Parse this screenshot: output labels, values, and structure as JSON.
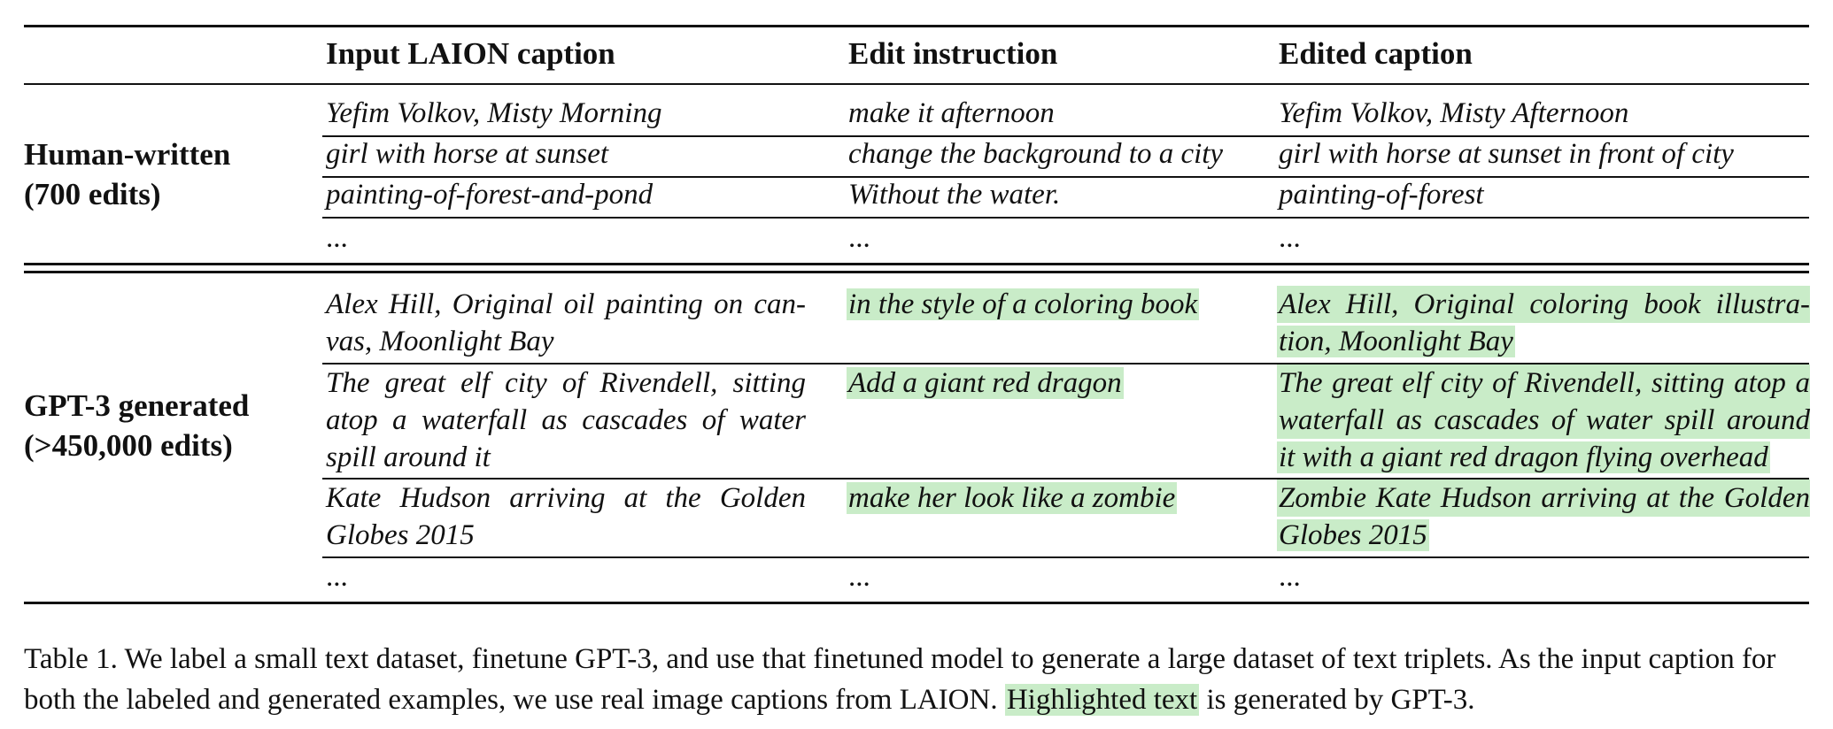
{
  "table": {
    "headers": [
      "Input LAION caption",
      "Edit instruction",
      "Edited caption"
    ],
    "groups": [
      {
        "label_line1": "Human-written",
        "label_line2": "(700 edits)",
        "rows": [
          {
            "input": "Yefim Volkov, Misty Morning",
            "instruction": "make it afternoon",
            "edited": "Yefim Volkov, Misty Afternoon"
          },
          {
            "input": "girl with horse at sunset",
            "instruction": "change the background to a city",
            "edited": "girl with horse at sunset in front of city"
          },
          {
            "input": "painting-of-forest-and-pond",
            "instruction": "Without the water.",
            "edited": "painting-of-forest"
          },
          {
            "input": "...",
            "instruction": "...",
            "edited": "..."
          }
        ]
      },
      {
        "label_line1": "GPT-3 generated",
        "label_line2": "(>450,000 edits)",
        "rows": [
          {
            "input_lines": [
              "Alex Hill, Original oil painting on can-",
              "vas, Moonlight Bay"
            ],
            "instruction": "in the style of a coloring book",
            "edited_lines": [
              "Alex Hill, Original coloring book illustra-",
              "tion, Moonlight Bay"
            ]
          },
          {
            "input_lines": [
              "The great elf city of Rivendell, sitting",
              "atop a waterfall as cascades of water",
              "spill around it"
            ],
            "instruction": "Add a giant red dragon",
            "edited_lines": [
              "The great elf city of Rivendell, sitting atop a",
              "waterfall as cascades of water spill around",
              "it with a giant red dragon flying overhead"
            ]
          },
          {
            "input_lines": [
              "Kate Hudson arriving at the Golden",
              "Globes 2015"
            ],
            "instruction": "make her look like a zombie",
            "edited_lines": [
              "Zombie Kate Hudson arriving at the Golden",
              "Globes 2015"
            ]
          },
          {
            "input": "...",
            "instruction": "...",
            "edited": "..."
          }
        ]
      }
    ]
  },
  "caption": {
    "part1": "Table 1. We label a small text dataset, finetune GPT-3, and use that finetuned model to generate a large dataset of text triplets. As the input caption for both the labeled and generated examples, we use real image captions from LAION.",
    "highlighted": "Highlighted text",
    "part2": "is generated by GPT-3."
  },
  "colors": {
    "highlight": "#c9ecc8",
    "rule": "#111111"
  }
}
